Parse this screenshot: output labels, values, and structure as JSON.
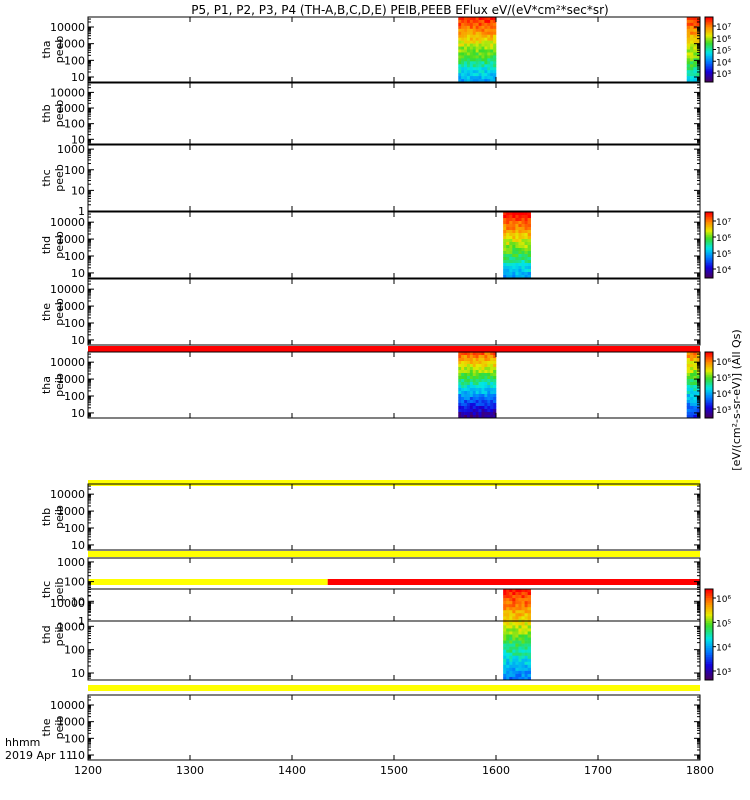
{
  "chart_data": {
    "type": "heatmap",
    "title": "P5, P1, P2, P3, P4 (TH-A,B,C,D,E) PEIB,PEEB EFlux eV/(eV*cm²*sec*sr)",
    "x_axis": {
      "range": [
        1200,
        1800
      ],
      "ticks": [
        "1200",
        "1300",
        "1400",
        "1500",
        "1600",
        "1700",
        "1800"
      ],
      "label_line1": "hhmm",
      "label_line2": "2019 Apr 11"
    },
    "colorbar_label": "[eV/(cm²-s-sr-eV)] (All Qs)",
    "panels": [
      {
        "id": "tha-peeb",
        "label1": "tha",
        "label2": "peeb",
        "yticks": [
          "10",
          "100",
          "1000",
          "10000"
        ],
        "ylog": [
          0.7,
          4.6
        ],
        "blocks": [
          {
            "x0": 1563,
            "x1": 1600,
            "cmin": 0.35,
            "cmax": 0.97
          },
          {
            "x0": 1787,
            "x1": 1800,
            "cmin": 0.45,
            "cmax": 0.95
          }
        ],
        "colorbar": {
          "ticks": [
            "10⁷",
            "10⁶",
            "10⁵",
            "10⁴",
            "10³"
          ]
        }
      },
      {
        "id": "thb-peeb",
        "label1": "thb",
        "label2": "peeb",
        "yticks": [
          "10",
          "100",
          "1000",
          "10000"
        ],
        "ylog": [
          0.7,
          4.6
        ],
        "blocks": []
      },
      {
        "id": "thc-peeb",
        "label1": "thc",
        "label2": "peeb",
        "yticks": [
          "1",
          "10",
          "100",
          "1000"
        ],
        "ylog": [
          0,
          3.2
        ],
        "blocks": []
      },
      {
        "id": "thd-peeb",
        "label1": "thd",
        "label2": "peeb",
        "yticks": [
          "10",
          "100",
          "1000",
          "10000"
        ],
        "ylog": [
          0.7,
          4.6
        ],
        "blocks": [
          {
            "x0": 1607,
            "x1": 1634,
            "cmin": 0.35,
            "cmax": 1.0
          }
        ],
        "colorbar": {
          "ticks": [
            "10⁷",
            "10⁶",
            "10⁵",
            "10⁴"
          ]
        }
      },
      {
        "id": "the-peeb",
        "label1": "the",
        "label2": "peeb",
        "yticks": [
          "10",
          "100",
          "1000",
          "10000"
        ],
        "ylog": [
          0.7,
          4.6
        ],
        "blocks": []
      },
      {
        "id": "tha-peib",
        "label1": "tha",
        "label2": "peib",
        "yticks": [
          "10",
          "100",
          "1000",
          "10000"
        ],
        "ylog": [
          0.7,
          4.6
        ],
        "blocks": [
          {
            "x0": 1563,
            "x1": 1600,
            "cmin": 0.05,
            "cmax": 0.9
          },
          {
            "x0": 1787,
            "x1": 1800,
            "cmin": 0.2,
            "cmax": 0.85
          }
        ],
        "colorbar": {
          "ticks": [
            "10⁶",
            "10⁵",
            "10⁴",
            "10³"
          ]
        }
      },
      {
        "id": "thb-peib",
        "label1": "thb",
        "label2": "peib",
        "yticks": [
          "10",
          "100",
          "1000",
          "10000"
        ],
        "ylog": [
          0.7,
          4.6
        ],
        "blocks": []
      },
      {
        "id": "thc-peib",
        "label1": "thc",
        "label2": "peib",
        "yticks": [
          "1",
          "10",
          "100",
          "1000"
        ],
        "ylog": [
          0,
          3.2
        ],
        "blocks": []
      },
      {
        "id": "thd-peib",
        "label1": "thd",
        "label2": "peib",
        "yticks": [
          "10",
          "100",
          "1000",
          "10000"
        ],
        "ylog": [
          0.7,
          4.6
        ],
        "blocks": [
          {
            "x0": 1607,
            "x1": 1634,
            "cmin": 0.3,
            "cmax": 0.98
          }
        ],
        "colorbar": {
          "ticks": [
            "10⁶",
            "10⁵",
            "10⁴",
            "10³"
          ]
        }
      },
      {
        "id": "the-peib",
        "label1": "the",
        "label2": "peib",
        "yticks": [
          "10",
          "100",
          "1000",
          "10000"
        ],
        "ylog": [
          0.7,
          4.6
        ],
        "blocks": []
      }
    ],
    "status_bars": [
      {
        "after_panel": 4,
        "segments": [
          {
            "x0": 1200,
            "x1": 1800,
            "color": "#ff0000"
          }
        ]
      },
      {
        "after_panel": 5,
        "segments": [
          {
            "x0": 1200,
            "x1": 1800,
            "color": "#ffff00"
          }
        ]
      },
      {
        "after_panel": 6,
        "segments": [
          {
            "x0": 1200,
            "x1": 1800,
            "color": "#ffff00"
          }
        ]
      },
      {
        "after_panel": 7,
        "segments": [
          {
            "x0": 1200,
            "x1": 1435,
            "color": "#ffff00"
          },
          {
            "x0": 1435,
            "x1": 1800,
            "color": "#ff0000"
          }
        ]
      },
      {
        "after_panel": 8,
        "segments": [
          {
            "x0": 1200,
            "x1": 1800,
            "color": "#ffff00"
          }
        ]
      }
    ]
  }
}
